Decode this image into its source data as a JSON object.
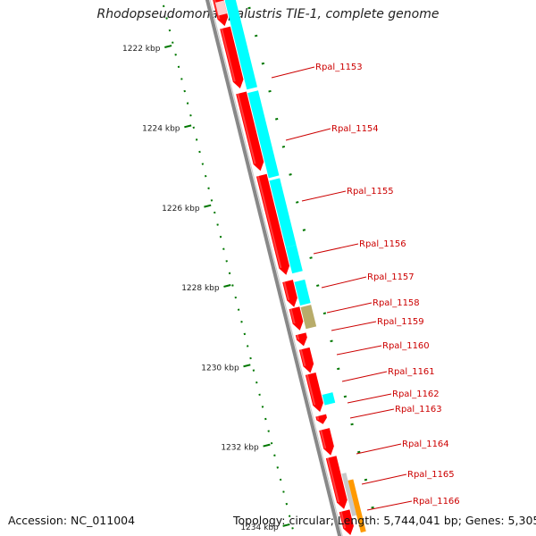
{
  "title": "Rhodopseudomonas palustris TIE-1, complete genome",
  "footer": {
    "accession": "Accession: NC_011004",
    "summary": "Topology: circular; Length: 5,744,041 bp; Genes: 5,305"
  },
  "ruler": [
    "1222 kbp",
    "1224 kbp",
    "1226 kbp",
    "1228 kbp",
    "1230 kbp",
    "1232 kbp",
    "1234 kbp"
  ],
  "gene_labels": [
    "Rpal_1153",
    "Rpal_1154",
    "Rpal_1155",
    "Rpal_1156",
    "Rpal_1157",
    "Rpal_1158",
    "Rpal_1159",
    "Rpal_1160",
    "Rpal_1161",
    "Rpal_1162",
    "Rpal_1163",
    "Rpal_1164",
    "Rpal_1165",
    "Rpal_1166"
  ],
  "colors": {
    "cds": "#ff0000",
    "gene": "#00ffff",
    "misc_feature": "#b8ac6a",
    "other": "#ff9900",
    "backbone": "#888888",
    "tick": "#007700",
    "label": "#cc0000"
  }
}
